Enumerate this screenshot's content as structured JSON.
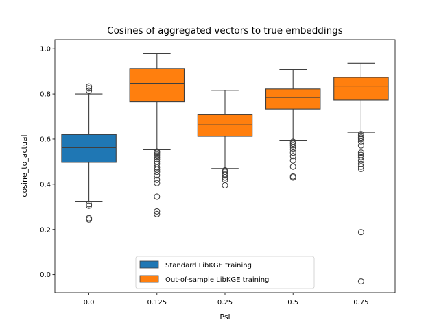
{
  "chart_data": {
    "type": "box",
    "title": "Cosines of aggregated vectors to true embeddings",
    "xlabel": "Psi",
    "ylabel": "cosine_to_actual",
    "ylim": [
      -0.08,
      1.04
    ],
    "yticks": [
      0.0,
      0.2,
      0.4,
      0.6,
      0.8,
      1.0
    ],
    "ytick_labels": [
      "0.0",
      "0.2",
      "0.4",
      "0.6",
      "0.8",
      "1.0"
    ],
    "categories": [
      "0.0",
      "0.125",
      "0.25",
      "0.5",
      "0.75"
    ],
    "grid": false,
    "legend_position": "lower-center",
    "series": [
      {
        "name": "Standard LibKGE training",
        "color": "#1f77b4",
        "boxes": [
          {
            "category": "0.0",
            "whisker_low": 0.325,
            "q1": 0.497,
            "median": 0.562,
            "q3": 0.62,
            "whisker_high": 0.8,
            "outliers": [
              0.833,
              0.825,
              0.815,
              0.312,
              0.305,
              0.25,
              0.244
            ]
          }
        ]
      },
      {
        "name": "Out-of-sample LibKGE training",
        "color": "#ff7f0e",
        "boxes": [
          {
            "category": "0.125",
            "whisker_low": 0.553,
            "q1": 0.765,
            "median": 0.847,
            "q3": 0.913,
            "whisker_high": 0.978,
            "outliers": [
              0.545,
              0.54,
              0.533,
              0.527,
              0.52,
              0.51,
              0.5,
              0.49,
              0.475,
              0.465,
              0.455,
              0.44,
              0.42,
              0.405,
              0.345,
              0.28,
              0.268
            ]
          },
          {
            "category": "0.25",
            "whisker_low": 0.47,
            "q1": 0.612,
            "median": 0.663,
            "q3": 0.708,
            "whisker_high": 0.816,
            "outliers": [
              0.462,
              0.455,
              0.445,
              0.44,
              0.43,
              0.42,
              0.395
            ]
          },
          {
            "category": "0.5",
            "whisker_low": 0.595,
            "q1": 0.733,
            "median": 0.785,
            "q3": 0.822,
            "whisker_high": 0.908,
            "outliers": [
              0.588,
              0.58,
              0.573,
              0.565,
              0.555,
              0.54,
              0.525,
              0.505,
              0.478,
              0.435,
              0.43
            ]
          },
          {
            "category": "0.75",
            "whisker_low": 0.63,
            "q1": 0.773,
            "median": 0.835,
            "q3": 0.873,
            "whisker_high": 0.936,
            "outliers": [
              0.622,
              0.615,
              0.607,
              0.6,
              0.59,
              0.572,
              0.54,
              0.53,
              0.52,
              0.505,
              0.49,
              0.478,
              0.468,
              0.188,
              -0.03
            ]
          }
        ]
      }
    ]
  }
}
